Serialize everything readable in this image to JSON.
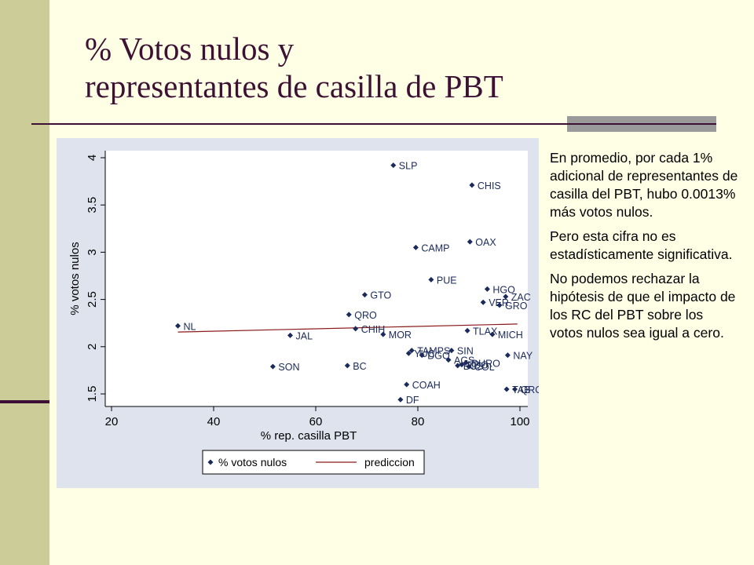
{
  "slide": {
    "title_line1": "% Votos nulos y",
    "title_line2": "representantes de casilla de PBT",
    "paragraphs": [
      "En promedio, por cada 1% adicional de representantes de casilla del PBT, hubo 0.0013% más votos nulos.",
      "Pero esta cifra no es estadísticamente significativa.",
      "No podemos rechazar la hipótesis de que el impacto de los RC del PBT sobre los votos nulos sea igual a cero."
    ]
  },
  "chart_data": {
    "type": "scatter",
    "title": "",
    "xlabel": "% rep. casilla PBT",
    "ylabel": "% votos nulos",
    "xlim": [
      20,
      100
    ],
    "ylim": [
      1.5,
      4
    ],
    "xticks": [
      "20",
      "40",
      "60",
      "80",
      "100"
    ],
    "yticks": [
      "1.5",
      "2",
      "2.5",
      "3",
      "3.5",
      "4"
    ],
    "grid": false,
    "legend_position": "bottom",
    "series": [
      {
        "name": "% votos nulos",
        "type": "scatter",
        "points": [
          {
            "label": "SLP",
            "x": 75.2,
            "y": 3.92
          },
          {
            "label": "CHIS",
            "x": 90.6,
            "y": 3.71
          },
          {
            "label": "CAMP",
            "x": 79.6,
            "y": 3.05
          },
          {
            "label": "OAX",
            "x": 90.2,
            "y": 3.11
          },
          {
            "label": "PUE",
            "x": 82.6,
            "y": 2.71
          },
          {
            "label": "HGO",
            "x": 93.6,
            "y": 2.61
          },
          {
            "label": "ZAC",
            "x": 97.2,
            "y": 2.53
          },
          {
            "label": "VER",
            "x": 92.8,
            "y": 2.47
          },
          {
            "label": "GRO",
            "x": 96.0,
            "y": 2.44
          },
          {
            "label": "GTO",
            "x": 69.6,
            "y": 2.55
          },
          {
            "label": "QRO",
            "x": 66.5,
            "y": 2.34
          },
          {
            "label": "CHIH",
            "x": 67.8,
            "y": 2.19
          },
          {
            "label": "MOR",
            "x": 73.2,
            "y": 2.13
          },
          {
            "label": "TLAX",
            "x": 89.7,
            "y": 2.17
          },
          {
            "label": "MICH",
            "x": 94.6,
            "y": 2.13
          },
          {
            "label": "NL",
            "x": 33.0,
            "y": 2.22
          },
          {
            "label": "JAL",
            "x": 55.0,
            "y": 2.12
          },
          {
            "label": "TAMPS",
            "x": 78.8,
            "y": 1.96
          },
          {
            "label": "SIN",
            "x": 86.6,
            "y": 1.96
          },
          {
            "label": "YUC",
            "x": 78.2,
            "y": 1.93
          },
          {
            "label": "DGO",
            "x": 80.8,
            "y": 1.91
          },
          {
            "label": "NAY",
            "x": 97.6,
            "y": 1.91
          },
          {
            "label": "AGS",
            "x": 86.0,
            "y": 1.86
          },
          {
            "label": "DURO",
            "x": 89.4,
            "y": 1.83
          },
          {
            "label": "EDO",
            "x": 88.6,
            "y": 1.81
          },
          {
            "label": "BCS",
            "x": 87.8,
            "y": 1.8
          },
          {
            "label": "COL",
            "x": 90.0,
            "y": 1.79
          },
          {
            "label": "SON",
            "x": 51.6,
            "y": 1.79
          },
          {
            "label": "BC",
            "x": 66.2,
            "y": 1.8
          },
          {
            "label": "COAH",
            "x": 77.8,
            "y": 1.6
          },
          {
            "label": "DF",
            "x": 76.6,
            "y": 1.44
          },
          {
            "label": "TAB",
            "x": 97.4,
            "y": 1.55
          },
          {
            "label": "QROO",
            "x": 99.0,
            "y": 1.55
          }
        ]
      },
      {
        "name": "prediccion",
        "type": "line",
        "x": [
          33.0,
          99.5
        ],
        "y": [
          2.155,
          2.24
        ]
      }
    ]
  }
}
